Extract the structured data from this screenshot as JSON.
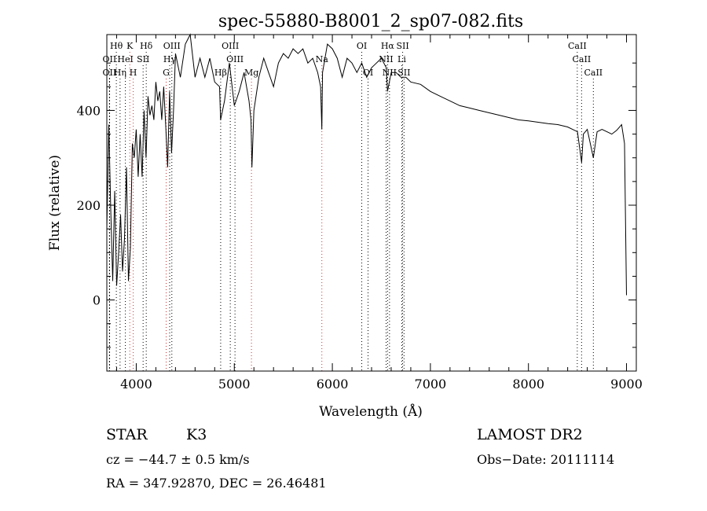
{
  "chart_data": {
    "type": "line",
    "title": "spec-55880-B8001_2_sp07-082.fits",
    "xlabel": "Wavelength (Å)",
    "ylabel": "Flux (relative)",
    "xlim": [
      3700,
      9100
    ],
    "ylim": [
      -150,
      560
    ],
    "xticks": [
      "4000",
      "5000",
      "6000",
      "7000",
      "8000",
      "9000"
    ],
    "xtick_values": [
      4000,
      5000,
      6000,
      7000,
      8000,
      9000
    ],
    "yticks": [
      "0",
      "200",
      "400"
    ],
    "ytick_values": [
      0,
      200,
      400
    ],
    "grid": false,
    "series": [
      {
        "x": [
          3700,
          3720,
          3740,
          3760,
          3780,
          3800,
          3820,
          3840,
          3860,
          3880,
          3900,
          3920,
          3940,
          3960,
          3980,
          4000,
          4020,
          4040,
          4060,
          4080,
          4100,
          4120,
          4140,
          4160,
          4180,
          4200,
          4220,
          4240,
          4260,
          4280,
          4300,
          4320,
          4340,
          4360,
          4380,
          4400,
          4450,
          4500,
          4550,
          4600,
          4650,
          4700,
          4750,
          4800,
          4850,
          4860,
          4900,
          4950,
          5000,
          5050,
          5100,
          5150,
          5170,
          5180,
          5200,
          5250,
          5300,
          5350,
          5400,
          5450,
          5500,
          5550,
          5600,
          5650,
          5700,
          5750,
          5800,
          5850,
          5880,
          5893,
          5900,
          5950,
          6000,
          6050,
          6100,
          6150,
          6200,
          6250,
          6300,
          6350,
          6400,
          6450,
          6500,
          6550,
          6563,
          6600,
          6650,
          6700,
          6750,
          6800,
          6900,
          7000,
          7100,
          7200,
          7300,
          7400,
          7500,
          7600,
          7700,
          7800,
          7900,
          8000,
          8100,
          8200,
          8300,
          8400,
          8450,
          8500,
          8542,
          8560,
          8600,
          8662,
          8700,
          8750,
          8800,
          8850,
          8900,
          8950,
          8980,
          9000
        ],
        "y": [
          150,
          370,
          190,
          40,
          230,
          30,
          100,
          180,
          60,
          130,
          280,
          40,
          110,
          330,
          300,
          360,
          260,
          350,
          260,
          400,
          300,
          430,
          390,
          410,
          380,
          460,
          420,
          440,
          380,
          450,
          370,
          280,
          440,
          310,
          400,
          520,
          470,
          540,
          560,
          470,
          510,
          470,
          510,
          460,
          450,
          380,
          420,
          500,
          410,
          440,
          480,
          420,
          380,
          280,
          400,
          470,
          510,
          480,
          450,
          500,
          520,
          510,
          530,
          520,
          530,
          500,
          510,
          480,
          450,
          360,
          480,
          540,
          530,
          510,
          470,
          510,
          500,
          480,
          500,
          470,
          490,
          500,
          510,
          490,
          440,
          480,
          480,
          470,
          470,
          460,
          455,
          440,
          430,
          420,
          410,
          405,
          400,
          395,
          390,
          385,
          380,
          378,
          375,
          372,
          370,
          365,
          360,
          355,
          290,
          350,
          360,
          300,
          355,
          360,
          355,
          350,
          358,
          370,
          330,
          10
        ]
      }
    ],
    "spectral_lines": [
      {
        "label": "Hθ",
        "x": 3797,
        "row": 1,
        "color": "#000000"
      },
      {
        "label": "K",
        "x": 3934,
        "row": 1,
        "color": "#cc3333"
      },
      {
        "label": "Hδ",
        "x": 4102,
        "row": 1,
        "color": "#000000"
      },
      {
        "label": "OIII",
        "x": 4363,
        "row": 1,
        "color": "#000000"
      },
      {
        "label": "OIII",
        "x": 4959,
        "row": 1,
        "color": "#000000"
      },
      {
        "label": "OI",
        "x": 6300,
        "row": 1,
        "color": "#000000"
      },
      {
        "label": "Hα",
        "x": 6563,
        "row": 1,
        "color": "#000000"
      },
      {
        "label": "SII",
        "x": 6717,
        "row": 1,
        "color": "#000000"
      },
      {
        "label": "CaII",
        "x": 8498,
        "row": 1,
        "color": "#000000"
      },
      {
        "label": "OII",
        "x": 3727,
        "row": 2,
        "color": "#000000"
      },
      {
        "label": "HeI",
        "x": 3889,
        "row": 2,
        "color": "#000000"
      },
      {
        "label": "SII",
        "x": 4070,
        "row": 2,
        "color": "#000000"
      },
      {
        "label": "Hγ",
        "x": 4341,
        "row": 2,
        "color": "#000000"
      },
      {
        "label": "OIII",
        "x": 5007,
        "row": 2,
        "color": "#000000"
      },
      {
        "label": "NII",
        "x": 6548,
        "row": 2,
        "color": "#000000"
      },
      {
        "label": "Li",
        "x": 6708,
        "row": 2,
        "color": "#000000"
      },
      {
        "label": "CaII",
        "x": 8542,
        "row": 2,
        "color": "#000000"
      },
      {
        "label": "OII",
        "x": 3727,
        "row": 3,
        "color": "#000000"
      },
      {
        "label": "Hη",
        "x": 3835,
        "row": 3,
        "color": "#000000"
      },
      {
        "label": "H",
        "x": 3969,
        "row": 3,
        "color": "#cc3333"
      },
      {
        "label": "G",
        "x": 4305,
        "row": 3,
        "color": "#cc3333"
      },
      {
        "label": "Hβ",
        "x": 4861,
        "row": 3,
        "color": "#000000"
      },
      {
        "label": "Mg",
        "x": 5175,
        "row": 3,
        "color": "#cc3333"
      },
      {
        "label": "Na",
        "x": 5893,
        "row": 2,
        "color": "#cc3333"
      },
      {
        "label": "OI",
        "x": 6364,
        "row": 3,
        "color": "#000000"
      },
      {
        "label": "NII",
        "x": 6583,
        "row": 3,
        "color": "#000000"
      },
      {
        "label": "SII",
        "x": 6731,
        "row": 3,
        "color": "#000000"
      },
      {
        "label": "CaII",
        "x": 8662,
        "row": 3,
        "color": "#000000"
      }
    ]
  },
  "info": {
    "object_type": "STAR",
    "subclass": "K3",
    "survey": "LAMOST DR2",
    "cz": "cz = −44.7 ± 0.5 km/s",
    "obs_date": "Obs−Date: 20111114",
    "coords": "RA = 347.92870, DEC =  26.46481"
  }
}
